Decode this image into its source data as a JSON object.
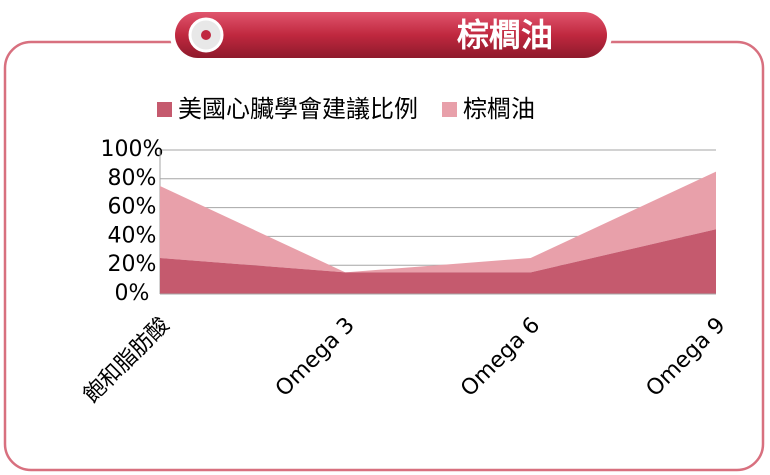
{
  "chart_data": {
    "type": "area",
    "stacked": true,
    "title": "棕櫚油",
    "categories": [
      "飽和脂肪酸",
      "Omega 3",
      "Omega 6",
      "Omega 9"
    ],
    "series": [
      {
        "name": "美國心臟學會建議比例",
        "color": "#c55a6e",
        "values": [
          25,
          15,
          15,
          45
        ]
      },
      {
        "name": "棕櫚油",
        "color": "#e8a0aa",
        "values": [
          50,
          0,
          10,
          40
        ]
      }
    ],
    "ylim": [
      0,
      100
    ],
    "yticks": [
      {
        "value": 0,
        "label": "0%"
      },
      {
        "value": 20,
        "label": "20%"
      },
      {
        "value": 40,
        "label": "40%"
      },
      {
        "value": 60,
        "label": "60%"
      },
      {
        "value": 80,
        "label": "80%"
      },
      {
        "value": 100,
        "label": "100%"
      }
    ],
    "grid": true,
    "legend": "top"
  }
}
